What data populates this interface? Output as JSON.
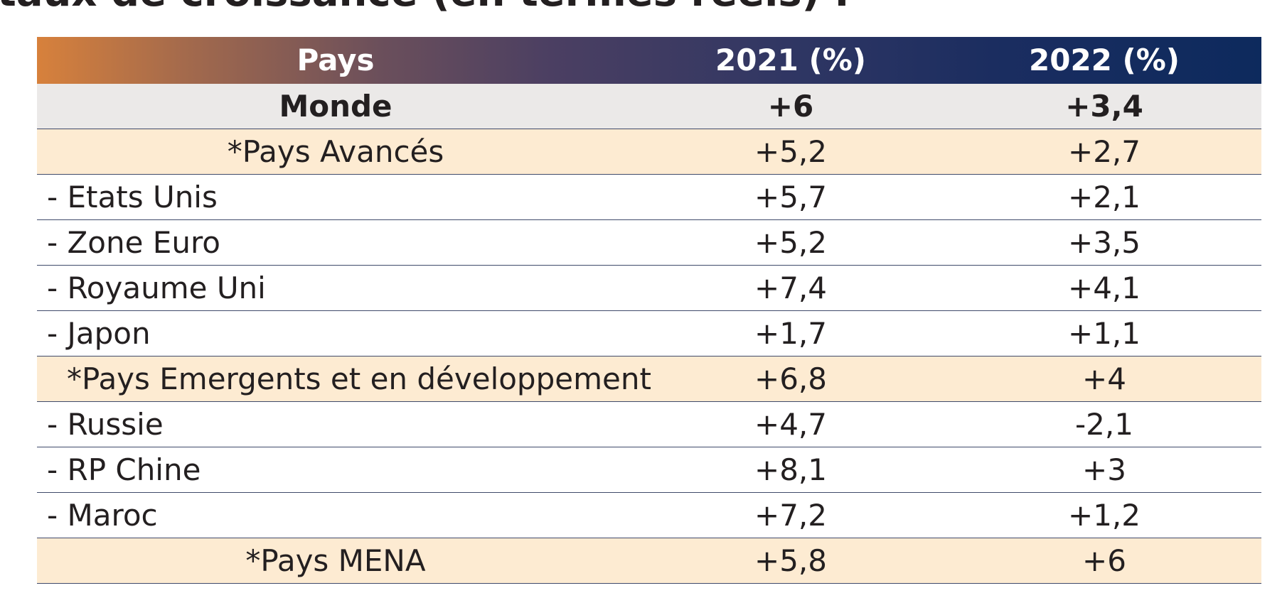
{
  "title_fragment": "taux de croissance (en termes réels) :",
  "table": {
    "headers": [
      "Pays",
      "2021 (%)",
      "2022 (%)"
    ],
    "rows": [
      {
        "label": "Monde",
        "y2021": "+6",
        "y2022": "+3,4"
      },
      {
        "label": "*Pays Avancés",
        "y2021": "+5,2",
        "y2022": "+2,7"
      },
      {
        "label": "- Etats Unis",
        "y2021": "+5,7",
        "y2022": "+2,1"
      },
      {
        "label": "- Zone Euro",
        "y2021": "+5,2",
        "y2022": "+3,5"
      },
      {
        "label": "- Royaume Uni",
        "y2021": "+7,4",
        "y2022": "+4,1"
      },
      {
        "label": "- Japon",
        "y2021": "+1,7",
        "y2022": "+1,1"
      },
      {
        "label": "*Pays Emergents et en développement",
        "y2021": "+6,8",
        "y2022": "+4"
      },
      {
        "label": "- Russie",
        "y2021": "+4,7",
        "y2022": "-2,1"
      },
      {
        "label": "- RP Chine",
        "y2021": "+8,1",
        "y2022": "+3"
      },
      {
        "label": "- Maroc",
        "y2021": "+7,2",
        "y2022": "+1,2"
      },
      {
        "label": "*Pays MENA",
        "y2021": "+5,8",
        "y2022": "+6"
      }
    ]
  },
  "colors": {
    "header_start": "#d7813c",
    "header_end": "#0d2a5d",
    "world_row": "#ebe9e8",
    "group_row": "#fdebd2",
    "rule": "#3f4a6a"
  }
}
